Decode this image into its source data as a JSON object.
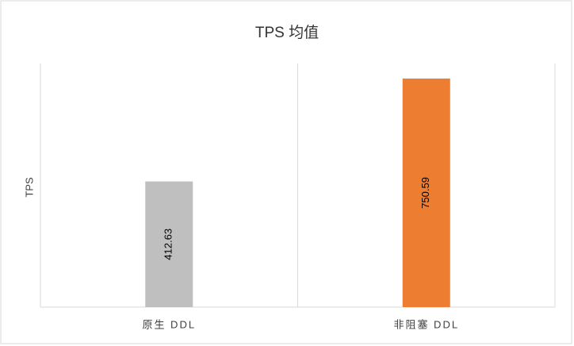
{
  "chart_data": {
    "type": "bar",
    "title": "TPS 均值",
    "y_label": "TPS",
    "categories": [
      "原生 DDL",
      "非阻塞 DDL"
    ],
    "values": [
      412.63,
      750.59
    ],
    "colors": [
      "#bfbfbf",
      "#ed7d31"
    ],
    "ylim": [
      0,
      800
    ]
  }
}
